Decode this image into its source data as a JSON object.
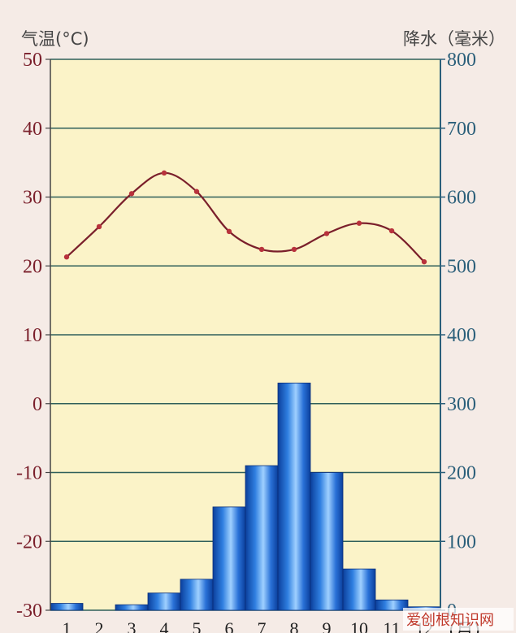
{
  "chart_data": {
    "type": "bar",
    "categories": [
      "1",
      "2",
      "3",
      "4",
      "5",
      "6",
      "7",
      "8",
      "9",
      "10",
      "11",
      "12"
    ],
    "x_unit": "(月)",
    "series": [
      {
        "name": "",
        "type": "line",
        "axis": "left",
        "values": [
          21.3,
          25.7,
          30.5,
          33.5,
          30.8,
          25.0,
          22.4,
          22.4,
          24.7,
          26.2,
          25.1,
          20.6
        ]
      },
      {
        "name": "",
        "type": "bar",
        "axis": "right",
        "values": [
          10,
          0,
          8,
          25,
          45,
          150,
          210,
          330,
          200,
          60,
          15,
          5
        ]
      }
    ],
    "y_left": {
      "label": "气温(°C)",
      "range": [
        -30,
        50
      ],
      "ticks": [
        "-30",
        "-20",
        "-10",
        "0",
        "10",
        "20",
        "30",
        "40",
        "50"
      ]
    },
    "y_right": {
      "label": "降水（毫米）",
      "range": [
        0,
        800
      ],
      "ticks": [
        "0",
        "100",
        "200",
        "300",
        "400",
        "500",
        "600",
        "700",
        "800"
      ]
    },
    "grid": true,
    "colors": {
      "plot_bg": "#fbf3c8",
      "line": "#7a1f2b",
      "bar": "#1e64c8",
      "grid": "#2f5f5a",
      "temp_ticks": "#7a1f2b",
      "precip_ticks": "#2b5f7a"
    }
  },
  "watermark": {
    "text": "爱创根知识网"
  }
}
